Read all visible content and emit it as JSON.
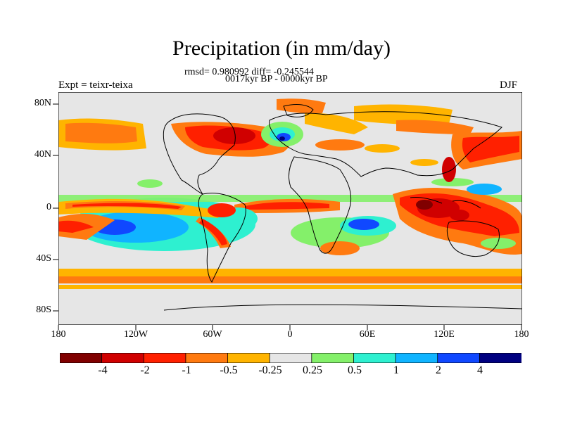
{
  "title": "Precipitation (in mm/day)",
  "stats_line": "rmsd= 0.980992 diff= -0.245544",
  "period_line": "0017kyr BP - 0000kyr BP",
  "experiment_label": "Expt = teixr-teixa",
  "season_label": "DJF",
  "lat_labels": [
    "80N",
    "40N",
    "0",
    "40S",
    "80S"
  ],
  "lon_labels": [
    "180",
    "120W",
    "60W",
    "0",
    "60E",
    "120E",
    "180"
  ],
  "colorbar": {
    "labels": [
      "-4",
      "-2",
      "-1",
      "-0.5",
      "-0.25",
      "0.25",
      "0.5",
      "1",
      "2",
      "4"
    ],
    "colors": [
      "#800000",
      "#d00000",
      "#ff2000",
      "#ff7a10",
      "#ffb400",
      "#e6e6e6",
      "#84f06a",
      "#2ef0d0",
      "#10b4ff",
      "#1048ff",
      "#000080"
    ]
  },
  "map": {
    "projection": "cylindrical-equidistant",
    "lon_range": [
      -180,
      180
    ],
    "lat_range": [
      -90,
      90
    ],
    "neutral_color": "#e6e6e6",
    "coastline_color": "#000000"
  }
}
